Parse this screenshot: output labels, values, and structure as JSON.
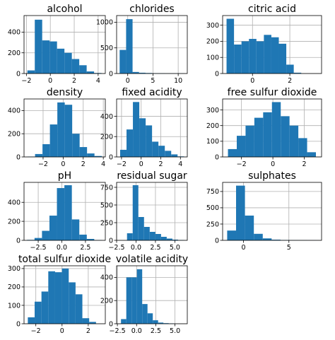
{
  "figure": {
    "bar_color": "#1f77b4",
    "grid": true
  },
  "chart_data": [
    {
      "type": "bar",
      "title": "alcohol",
      "bin_edges": [
        -1.92,
        -1.3,
        -0.68,
        -0.06,
        0.56,
        1.18,
        1.8,
        2.42,
        3.04,
        3.66,
        4.28
      ],
      "values": [
        30,
        520,
        320,
        310,
        240,
        200,
        140,
        80,
        20,
        5
      ],
      "xlim": [
        -2.2,
        4.6
      ],
      "ylim": [
        0,
        560
      ],
      "xticks": [
        -2,
        0,
        2,
        4
      ],
      "xtick_labels": [
        "−2",
        "0",
        "2",
        "4"
      ],
      "yticks": [
        0,
        200,
        400
      ],
      "ytick_labels": [
        "0",
        "200",
        "400"
      ],
      "grid": true
    },
    {
      "type": "bar",
      "title": "chlorides",
      "bin_edges": [
        -1.6,
        -0.32,
        0.96,
        2.24,
        3.52,
        4.8,
        6.08,
        7.36,
        8.64,
        9.92,
        11.2
      ],
      "values": [
        460,
        1060,
        30,
        15,
        10,
        5,
        5,
        3,
        2,
        2
      ],
      "xlim": [
        -2.2,
        11.8
      ],
      "ylim": [
        0,
        1130
      ],
      "xticks": [
        0,
        5,
        10
      ],
      "xtick_labels": [
        "0",
        "5",
        "10"
      ],
      "yticks": [
        0,
        500,
        1000
      ],
      "ytick_labels": [
        "0",
        "500",
        "1000"
      ],
      "grid": true
    },
    {
      "type": "bar",
      "title": "citric acid",
      "bin_edges": [
        -1.39,
        -0.99,
        -0.59,
        -0.19,
        0.21,
        0.61,
        1.01,
        1.41,
        1.81,
        2.21,
        2.61
      ],
      "values": [
        340,
        180,
        200,
        215,
        200,
        240,
        225,
        185,
        55,
        5
      ],
      "xlim": [
        -1.6,
        3.7
      ],
      "ylim": [
        0,
        360
      ],
      "xticks": [
        0,
        2
      ],
      "xtick_labels": [
        "0",
        "2"
      ],
      "yticks": [
        0,
        100,
        200,
        300
      ],
      "ytick_labels": [
        "0",
        "100",
        "200",
        "300"
      ],
      "grid": true
    },
    {
      "type": "bar",
      "title": "density",
      "bin_edges": [
        -3.54,
        -2.8,
        -2.06,
        -1.32,
        -0.58,
        0.16,
        0.9,
        1.64,
        2.38,
        3.12,
        3.86
      ],
      "values": [
        3,
        25,
        110,
        280,
        470,
        450,
        200,
        85,
        30,
        8
      ],
      "xlim": [
        -3.9,
        4.2
      ],
      "ylim": [
        0,
        500
      ],
      "xticks": [
        -2,
        0,
        2,
        4
      ],
      "xtick_labels": [
        "−2",
        "0",
        "2",
        "4"
      ],
      "yticks": [
        0,
        200,
        400
      ],
      "ytick_labels": [
        "0",
        "200",
        "400"
      ],
      "grid": true
    },
    {
      "type": "bar",
      "title": "fixed acidity",
      "bin_edges": [
        -2.14,
        -1.49,
        -0.84,
        -0.19,
        0.46,
        1.11,
        1.76,
        2.41,
        3.06,
        3.71,
        4.36
      ],
      "values": [
        70,
        270,
        540,
        380,
        310,
        150,
        110,
        60,
        25,
        5
      ],
      "xlim": [
        -2.5,
        4.7
      ],
      "ylim": [
        0,
        570
      ],
      "xticks": [
        -2,
        0,
        2,
        4
      ],
      "xtick_labels": [
        "−2",
        "0",
        "2",
        "4"
      ],
      "yticks": [
        0,
        200,
        400
      ],
      "ytick_labels": [
        "0",
        "200",
        "400"
      ],
      "grid": true
    },
    {
      "type": "bar",
      "title": "free sulfur dioxide",
      "bin_edges": [
        -2.86,
        -2.3,
        -1.74,
        -1.18,
        -0.62,
        -0.06,
        0.5,
        1.06,
        1.62,
        2.18,
        2.74
      ],
      "values": [
        50,
        135,
        200,
        250,
        285,
        350,
        260,
        200,
        120,
        30
      ],
      "xlim": [
        -3.2,
        3.1
      ],
      "ylim": [
        0,
        370
      ],
      "xticks": [
        -2,
        0,
        2
      ],
      "xtick_labels": [
        "−2",
        "0",
        "2"
      ],
      "yticks": [
        0,
        100,
        200,
        300
      ],
      "ytick_labels": [
        "0",
        "100",
        "200",
        "300"
      ],
      "grid": true
    },
    {
      "type": "bar",
      "title": "pH",
      "bin_edges": [
        -3.68,
        -2.89,
        -2.1,
        -1.31,
        -0.52,
        0.27,
        1.06,
        1.85,
        2.64,
        3.43,
        4.22
      ],
      "values": [
        5,
        25,
        100,
        260,
        550,
        580,
        220,
        60,
        15,
        3
      ],
      "xlim": [
        -4.0,
        4.6
      ],
      "ylim": [
        0,
        610
      ],
      "xticks": [
        -2.5,
        0.0,
        2.5
      ],
      "xtick_labels": [
        "−2.5",
        "0.0",
        "2.5"
      ],
      "yticks": [
        0,
        200,
        400
      ],
      "ytick_labels": [
        "0",
        "200",
        "400"
      ],
      "grid": true
    },
    {
      "type": "bar",
      "title": "residual sugar",
      "bin_edges": [
        -1.16,
        -0.43,
        0.3,
        1.03,
        1.76,
        2.49,
        3.22,
        3.95,
        4.68,
        5.41,
        6.14
      ],
      "values": [
        100,
        780,
        330,
        190,
        120,
        90,
        50,
        25,
        10,
        5
      ],
      "xlim": [
        -2.5,
        6.6
      ],
      "ylim": [
        0,
        820
      ],
      "xticks": [
        -2.5,
        0.0,
        2.5,
        5.0
      ],
      "xtick_labels": [
        "−2.5",
        "0.0",
        "2.5",
        "5.0"
      ],
      "yticks": [
        0,
        250,
        500,
        750
      ],
      "ytick_labels": [
        "0",
        "250",
        "500",
        "750"
      ],
      "grid": true
    },
    {
      "type": "bar",
      "title": "sulphates",
      "bin_edges": [
        -1.8,
        -0.82,
        0.16,
        1.14,
        2.12,
        3.1,
        4.08,
        5.06,
        6.04,
        7.02,
        8.0
      ],
      "values": [
        150,
        840,
        380,
        100,
        30,
        10,
        5,
        3,
        2,
        1
      ],
      "xlim": [
        -2.3,
        8.6
      ],
      "ylim": [
        0,
        890
      ],
      "xticks": [
        0,
        5
      ],
      "xtick_labels": [
        "0",
        "5"
      ],
      "yticks": [
        0,
        250,
        500,
        750
      ],
      "ytick_labels": [
        "0",
        "250",
        "500",
        "750"
      ],
      "grid": true
    },
    {
      "type": "bar",
      "title": "total sulfur dioxide",
      "bin_edges": [
        -2.61,
        -2.09,
        -1.57,
        -1.05,
        -0.53,
        -0.01,
        0.51,
        1.03,
        1.55,
        2.07,
        2.59
      ],
      "values": [
        35,
        120,
        175,
        285,
        280,
        300,
        225,
        160,
        30,
        10
      ],
      "xlim": [
        -2.9,
        3.3
      ],
      "ylim": [
        0,
        315
      ],
      "xticks": [
        -2,
        0,
        2
      ],
      "xtick_labels": [
        "−2",
        "0",
        "2"
      ],
      "yticks": [
        0,
        100,
        200,
        300
      ],
      "ytick_labels": [
        "0",
        "100",
        "200",
        "300"
      ],
      "grid": true
    },
    {
      "type": "bar",
      "title": "volatile acidity",
      "bin_edges": [
        -2.03,
        -1.34,
        -0.65,
        0.04,
        0.73,
        1.42,
        2.11,
        2.8,
        3.49,
        4.18,
        4.87
      ],
      "values": [
        40,
        400,
        400,
        470,
        170,
        90,
        30,
        10,
        5,
        3
      ],
      "xlim": [
        -2.6,
        6.6
      ],
      "ylim": [
        0,
        500
      ],
      "xticks": [
        -2.5,
        0.0,
        2.5,
        5.0
      ],
      "xtick_labels": [
        "−2.5",
        "0.0",
        "2.5",
        "5.0"
      ],
      "yticks": [
        0,
        200,
        400
      ],
      "ytick_labels": [
        "0",
        "200",
        "400"
      ],
      "grid": true
    }
  ]
}
